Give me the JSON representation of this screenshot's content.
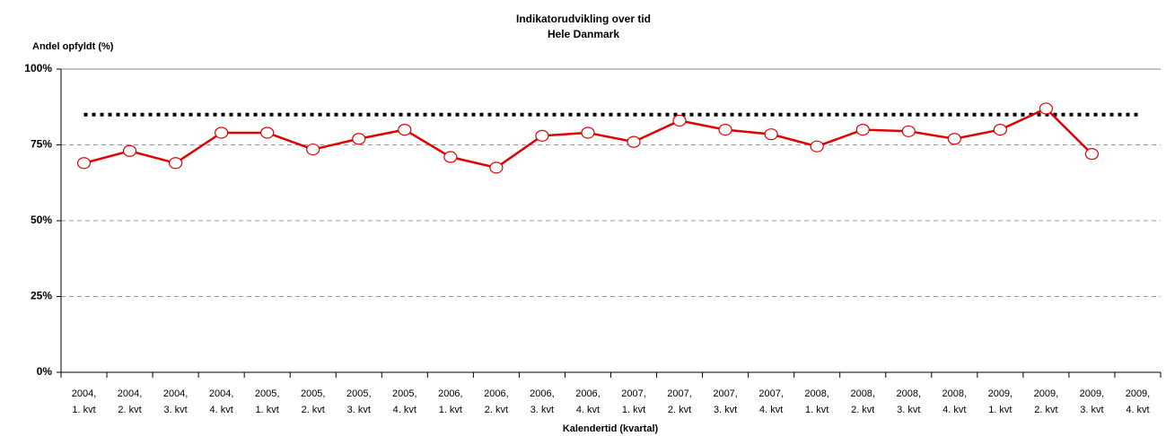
{
  "chart_data": {
    "type": "line",
    "title": [
      "Indikatorudvikling over tid",
      "Hele Danmark"
    ],
    "ylabel": "Andel opfyldt (%)",
    "xlabel": "Kalendertid (kvartal)",
    "categories": [
      "2004, 1. kvt",
      "2004, 2. kvt",
      "2004, 3. kvt",
      "2004, 4. kvt",
      "2005, 1. kvt",
      "2005, 2. kvt",
      "2005, 3. kvt",
      "2005, 4. kvt",
      "2006, 1. kvt",
      "2006, 2. kvt",
      "2006, 3. kvt",
      "2006, 4. kvt",
      "2007, 1. kvt",
      "2007, 2. kvt",
      "2007, 3. kvt",
      "2007, 4. kvt",
      "2008, 1. kvt",
      "2008, 2. kvt",
      "2008, 3. kvt",
      "2008, 4. kvt",
      "2009, 1. kvt",
      "2009, 2. kvt",
      "2009, 3. kvt",
      "2009, 4. kvt"
    ],
    "series": [
      {
        "color": "#e00000",
        "values": [
          69,
          73,
          69,
          79,
          79,
          73.5,
          77,
          80,
          71,
          67.5,
          78,
          79,
          76,
          83,
          80,
          78.5,
          74.5,
          80,
          79.5,
          77,
          80,
          87,
          72,
          null
        ]
      }
    ],
    "reference_line": {
      "value": 85,
      "color": "#000000"
    },
    "ylim": [
      0,
      100
    ],
    "yticks": [
      {
        "value": 0,
        "label": "0%"
      },
      {
        "value": 25,
        "label": "25%"
      },
      {
        "value": 50,
        "label": "50%"
      },
      {
        "value": 75,
        "label": "75%"
      },
      {
        "value": 100,
        "label": "100%"
      }
    ],
    "grid": true
  }
}
